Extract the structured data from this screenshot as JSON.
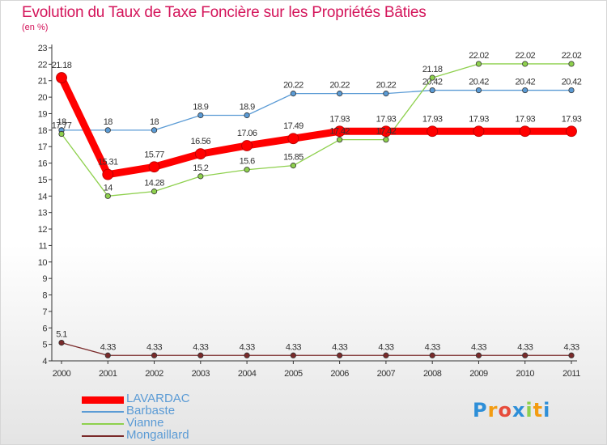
{
  "chart_data": {
    "type": "line",
    "title": "Evolution du Taux de Taxe Foncière sur les Propriétés Bâties",
    "subtitle": "(en %)",
    "xlabel": "",
    "ylabel": "",
    "x": [
      "2000",
      "2001",
      "2002",
      "2003",
      "2004",
      "2005",
      "2006",
      "2007",
      "2008",
      "2009",
      "2010",
      "2011"
    ],
    "ylim": [
      4,
      23
    ],
    "yticks": [
      "4",
      "5",
      "6",
      "7",
      "8",
      "9",
      "10",
      "11",
      "12",
      "13",
      "14",
      "15",
      "16",
      "17",
      "18",
      "19",
      "20",
      "21",
      "22",
      "23"
    ],
    "grid": false,
    "legend_position": "bottom-left",
    "series": [
      {
        "name": "LAVARDAC",
        "color": "#ff0000",
        "values": [
          21.18,
          15.31,
          15.77,
          16.56,
          17.06,
          17.49,
          17.93,
          17.93,
          17.93,
          17.93,
          17.93,
          17.93
        ],
        "labels": [
          "21.18",
          "15.31",
          "15.77",
          "16.56",
          "17.06",
          "17.49",
          "17.93",
          "17.93",
          "17.93",
          "17.93",
          "17.93",
          "17.93"
        ]
      },
      {
        "name": "Barbaste",
        "color": "#5b9bd5",
        "values": [
          18,
          18,
          18,
          18.9,
          18.9,
          20.22,
          20.22,
          20.22,
          20.42,
          20.42,
          20.42,
          20.42
        ],
        "labels": [
          "18",
          "18",
          "18",
          "18.9",
          "18.9",
          "20.22",
          "20.22",
          "20.22",
          "20.42",
          "20.42",
          "20.42",
          "20.42"
        ]
      },
      {
        "name": "Vianne",
        "color": "#8ed04d",
        "values": [
          17.77,
          14,
          14.28,
          15.2,
          15.6,
          15.85,
          17.42,
          17.42,
          21.18,
          22.02,
          22.02,
          22.02
        ],
        "labels": [
          "17.77",
          "14",
          "14.28",
          "15.2",
          "15.6",
          "15.85",
          "17.42",
          "17.42",
          "21.18",
          "22.02",
          "22.02",
          "22.02"
        ]
      },
      {
        "name": "Mongaillard",
        "color": "#7a2a2a",
        "values": [
          5.1,
          4.33,
          4.33,
          4.33,
          4.33,
          4.33,
          4.33,
          4.33,
          4.33,
          4.33,
          4.33,
          4.33
        ],
        "labels": [
          "5.1",
          "4.33",
          "4.33",
          "4.33",
          "4.33",
          "4.33",
          "4.33",
          "4.33",
          "4.33",
          "4.33",
          "4.33",
          "4.33"
        ]
      }
    ]
  },
  "logo": {
    "letters": [
      "P",
      "r",
      "o",
      "x",
      "i",
      "t",
      "i"
    ],
    "colors": [
      "#2e8fd8",
      "#f39c12",
      "#e74c3c",
      "#2e8fd8",
      "#8ed04d",
      "#f39c12",
      "#2e8fd8"
    ]
  }
}
